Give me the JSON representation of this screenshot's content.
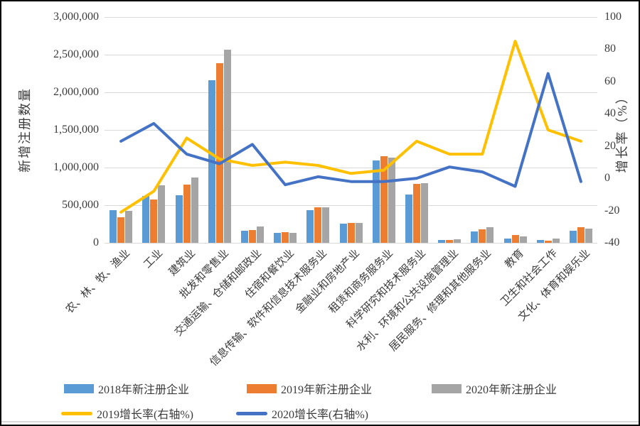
{
  "colors": {
    "bar_2018": "#5B9BD5",
    "bar_2019": "#ED7D31",
    "bar_2020": "#A5A5A5",
    "line_2019_growth": "#FFC000",
    "line_2020_growth": "#4472C4",
    "gridline": "#D9D9D9",
    "text": "#3B3B3B",
    "border": "#000000",
    "background": "#FFFFFF"
  },
  "chart_data": {
    "type": "bar",
    "subtype": "grouped bars with two lines on secondary axis",
    "title": "",
    "grid": true,
    "legend_position": "bottom",
    "categories": [
      "农、林、牧、渔业",
      "工业",
      "建筑业",
      "批发和零售业",
      "交通运输、仓储和邮政业",
      "住宿和餐饮业",
      "信息传输、软件和信息技术服务业",
      "金融业和房地产业",
      "租赁和商务服务业",
      "科学研究和技术服务业",
      "水利、环境和公共设施管理业",
      "居民服务、修理和其他服务业",
      "教育",
      "卫生和社会工作",
      "文化、体育和娱乐业"
    ],
    "series": [
      {
        "name": "2018年新注册企业",
        "kind": "bar",
        "axis": "left",
        "color": "#5B9BD5",
        "values": [
          430000,
          620000,
          630000,
          2160000,
          160000,
          130000,
          435000,
          255000,
          1090000,
          640000,
          35000,
          150000,
          55000,
          35000,
          160000
        ]
      },
      {
        "name": "2019年新注册企业",
        "kind": "bar",
        "axis": "left",
        "color": "#ED7D31",
        "values": [
          340000,
          575000,
          770000,
          2390000,
          170000,
          140000,
          470000,
          260000,
          1150000,
          785000,
          35000,
          180000,
          100000,
          28000,
          205000
        ]
      },
      {
        "name": "2020年新注册企业",
        "kind": "bar",
        "axis": "left",
        "color": "#A5A5A5",
        "values": [
          425000,
          765000,
          870000,
          2570000,
          220000,
          130000,
          470000,
          260000,
          1130000,
          790000,
          45000,
          205000,
          85000,
          55000,
          190000
        ]
      },
      {
        "name": "2019增长率(右轴%)",
        "kind": "line",
        "axis": "right",
        "color": "#FFC000",
        "values": [
          -21,
          -8,
          25,
          12,
          8,
          10,
          8,
          3,
          5,
          23,
          15,
          15,
          85,
          30,
          23
        ]
      },
      {
        "name": "2020增长率(右轴%)",
        "kind": "line",
        "axis": "right",
        "color": "#4472C4",
        "values": [
          23,
          34,
          15,
          9,
          21,
          -4,
          1,
          -2,
          -2,
          0,
          7,
          4,
          -5,
          65,
          -2
        ]
      }
    ],
    "left_axis": {
      "title": "新增注册数量",
      "min": 0,
      "max": 3000000,
      "step": 500000,
      "tick_labels": [
        "3,000,000",
        "2,500,000",
        "2,000,000",
        "1,500,000",
        "1,000,000",
        "500,000",
        "0"
      ]
    },
    "right_axis": {
      "title": "增长率（%）",
      "min": -40,
      "max": 100,
      "step": 20,
      "tick_labels": [
        "100",
        "80",
        "60",
        "40",
        "20",
        "0",
        "-20",
        "-40"
      ]
    }
  }
}
